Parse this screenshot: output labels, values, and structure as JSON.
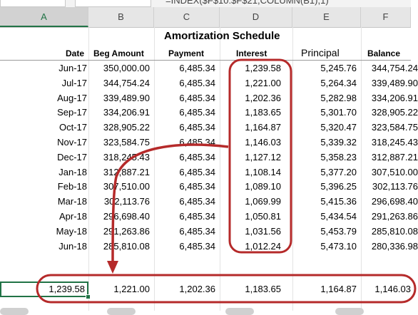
{
  "formula_bar": {
    "formula": "=INDEX($F$10:$F$21,COLUMN(B1),1)"
  },
  "column_headers": [
    "A",
    "B",
    "C",
    "D",
    "E",
    "F"
  ],
  "sheet": {
    "title": "Amortization Schedule",
    "headers": {
      "date": "Date",
      "beg_amount": "Beg Amount",
      "payment": "Payment",
      "interest": "Interest",
      "principal": "Principal",
      "balance": "Balance"
    },
    "rows": [
      {
        "date": "Jun-17",
        "beg": "350,000.00",
        "pay": "6,485.34",
        "int": "1,239.58",
        "prin": "5,245.76",
        "bal": "344,754.24"
      },
      {
        "date": "Jul-17",
        "beg": "344,754.24",
        "pay": "6,485.34",
        "int": "1,221.00",
        "prin": "5,264.34",
        "bal": "339,489.90"
      },
      {
        "date": "Aug-17",
        "beg": "339,489.90",
        "pay": "6,485.34",
        "int": "1,202.36",
        "prin": "5,282.98",
        "bal": "334,206.91"
      },
      {
        "date": "Sep-17",
        "beg": "334,206.91",
        "pay": "6,485.34",
        "int": "1,183.65",
        "prin": "5,301.70",
        "bal": "328,905.22"
      },
      {
        "date": "Oct-17",
        "beg": "328,905.22",
        "pay": "6,485.34",
        "int": "1,164.87",
        "prin": "5,320.47",
        "bal": "323,584.75"
      },
      {
        "date": "Nov-17",
        "beg": "323,584.75",
        "pay": "6,485.34",
        "int": "1,146.03",
        "prin": "5,339.32",
        "bal": "318,245.43"
      },
      {
        "date": "Dec-17",
        "beg": "318,245.43",
        "pay": "6,485.34",
        "int": "1,127.12",
        "prin": "5,358.23",
        "bal": "312,887.21"
      },
      {
        "date": "Jan-18",
        "beg": "312,887.21",
        "pay": "6,485.34",
        "int": "1,108.14",
        "prin": "5,377.20",
        "bal": "307,510.00"
      },
      {
        "date": "Feb-18",
        "beg": "307,510.00",
        "pay": "6,485.34",
        "int": "1,089.10",
        "prin": "5,396.25",
        "bal": "302,113.76"
      },
      {
        "date": "Mar-18",
        "beg": "302,113.76",
        "pay": "6,485.34",
        "int": "1,069.99",
        "prin": "5,415.36",
        "bal": "296,698.40"
      },
      {
        "date": "Apr-18",
        "beg": "296,698.40",
        "pay": "6,485.34",
        "int": "1,050.81",
        "prin": "5,434.54",
        "bal": "291,263.86"
      },
      {
        "date": "May-18",
        "beg": "291,263.86",
        "pay": "6,485.34",
        "int": "1,031.56",
        "prin": "5,453.79",
        "bal": "285,810.08"
      },
      {
        "date": "Jun-18",
        "beg": "285,810.08",
        "pay": "6,485.34",
        "int": "1,012.24",
        "prin": "5,473.10",
        "bal": "280,336.98"
      }
    ],
    "result_row": [
      "1,239.58",
      "1,221.00",
      "1,202.36",
      "1,183.65",
      "1,164.87",
      "1,146.03"
    ]
  },
  "colors": {
    "highlight": "#b52a2a",
    "selection": "#217346"
  }
}
